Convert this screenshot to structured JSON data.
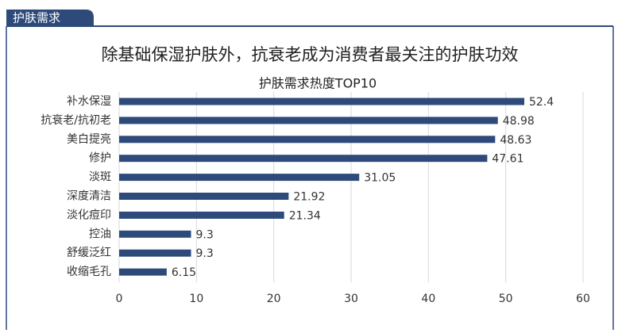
{
  "section_tag": "护肤需求",
  "headline": "除基础保湿护肤外，抗衰老成为消费者最关注的护肤功效",
  "chart_data": {
    "type": "bar",
    "orientation": "horizontal",
    "title": "护肤需求热度TOP10",
    "categories": [
      "补水保湿",
      "抗衰老/抗初老",
      "美白提亮",
      "修护",
      "淡斑",
      "深度清洁",
      "淡化痘印",
      "控油",
      "舒缓泛红",
      "收缩毛孔"
    ],
    "values": [
      52.4,
      48.98,
      48.63,
      47.61,
      31.05,
      21.92,
      21.34,
      9.3,
      9.3,
      6.15
    ],
    "color": "#2e4a7a",
    "xlim": [
      0,
      60
    ],
    "xticks": [
      0,
      10,
      20,
      30,
      40,
      50,
      60
    ],
    "grid": true
  }
}
